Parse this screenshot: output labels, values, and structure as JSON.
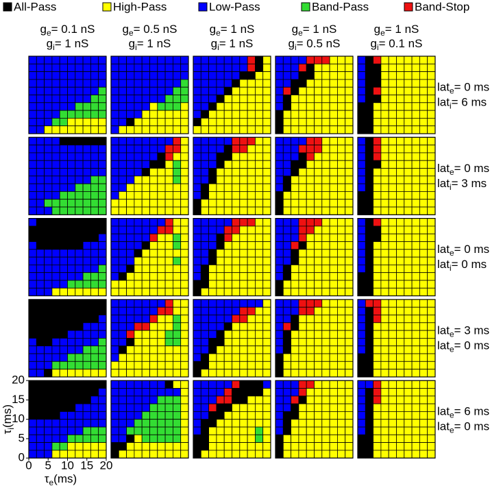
{
  "chart_data": {
    "type": "heatmap",
    "legend": [
      {
        "name": "All-Pass",
        "color": "#000000"
      },
      {
        "name": "High-Pass",
        "color": "#ffff00"
      },
      {
        "name": "Low-Pass",
        "color": "#0000ff"
      },
      {
        "name": "Band-Pass",
        "color": "#33dd33"
      },
      {
        "name": "Band-Stop",
        "color": "#ee1111"
      }
    ],
    "columns": [
      [
        {
          "base": "g",
          "sub": "e",
          "rest": "= 0.1 nS"
        },
        {
          "base": "g",
          "sub": "i",
          "rest": "= 1 nS"
        }
      ],
      [
        {
          "base": "g",
          "sub": "e",
          "rest": "= 0.5 nS"
        },
        {
          "base": "g",
          "sub": "i",
          "rest": "= 1 nS"
        }
      ],
      [
        {
          "base": "g",
          "sub": "e",
          "rest": "= 1 nS"
        },
        {
          "base": "g",
          "sub": "i",
          "rest": "= 1 nS"
        }
      ],
      [
        {
          "base": "g",
          "sub": "e",
          "rest": "= 1 nS"
        },
        {
          "base": "g",
          "sub": "i",
          "rest": "= 0.5 nS"
        }
      ],
      [
        {
          "base": "g",
          "sub": "e",
          "rest": "= 1 nS"
        },
        {
          "base": "g",
          "sub": "i",
          "rest": "= 0.1 nS"
        }
      ]
    ],
    "rows": [
      [
        {
          "base": "lat",
          "sub": "e",
          "rest": "= 0 ms"
        },
        {
          "base": "lat",
          "sub": "i",
          "rest": "= 6 ms"
        }
      ],
      [
        {
          "base": "lat",
          "sub": "e",
          "rest": "= 0 ms"
        },
        {
          "base": "lat",
          "sub": "i",
          "rest": "= 3 ms"
        }
      ],
      [
        {
          "base": "lat",
          "sub": "e",
          "rest": "= 0 ms"
        },
        {
          "base": "lat",
          "sub": "i",
          "rest": "= 0 ms"
        }
      ],
      [
        {
          "base": "lat",
          "sub": "e",
          "rest": "= 3 ms"
        },
        {
          "base": "lat",
          "sub": "e",
          "rest": "= 0 ms"
        }
      ],
      [
        {
          "base": "lat",
          "sub": "e",
          "rest": "= 6 ms"
        },
        {
          "base": "lat",
          "sub": "e",
          "rest": "= 0 ms"
        }
      ]
    ],
    "x_label": {
      "base": "τ",
      "sub": "e",
      "rest": "(ms)"
    },
    "y_label": {
      "base": "τ",
      "sub": "i",
      "rest": "(ms)"
    },
    "xlim": [
      0,
      20
    ],
    "ylim": [
      0,
      20
    ],
    "xticks": [
      0,
      5,
      10,
      15,
      20
    ],
    "yticks": [
      0,
      5,
      10,
      15,
      20
    ],
    "panels": [
      [
        [
          "2222222222",
          "2222222222",
          "2222222222",
          "2222222222",
          "2222222223",
          "2222222233",
          "2222223333",
          "2222333333",
          "2223311111",
          "2211111111"
        ],
        [
          "2222222222",
          "2222222222",
          "2222222222",
          "2222222223",
          "2222222233",
          "2222222333",
          "2222213331",
          "2222111111",
          "2201111111",
          "2111111111"
        ],
        [
          "2222222401",
          "2222222401",
          "2222220011",
          "2222201111",
          "2222011111",
          "2220111111",
          "2201111111",
          "2011111111",
          "0111111111",
          "1111111111"
        ],
        [
          "2222444111",
          "2224011111",
          "2220011111",
          "2200111111",
          "2401111111",
          "2011111111",
          "2011111111",
          "0111111111",
          "0111111111",
          "0111111111"
        ],
        [
          "2041111111",
          "2001111111",
          "2001111111",
          "2001111111",
          "2041111111",
          "2001111111",
          "0011111111",
          "0011111111",
          "0011111111",
          "0011111111"
        ]
      ],
      [
        [
          "2222000000",
          "2222222222",
          "2222222222",
          "2222222222",
          "2222222222",
          "2222222233",
          "2222223333",
          "2222333333",
          "2233333333",
          "2223333333"
        ],
        [
          "2222222241",
          "2222222441",
          "2222220411",
          "2222200131",
          "2222011131",
          "2221111131",
          "2211111111",
          "2111111111",
          "1111111111",
          "1111111111"
        ],
        [
          "2222244411",
          "2222044111",
          "2220011111",
          "2220111111",
          "2201111111",
          "2201111111",
          "2011111111",
          "2011111111",
          "0111111111",
          "0111111111"
        ],
        [
          "2222441111",
          "2224441111",
          "2220411111",
          "2200111111",
          "2201111111",
          "2011111111",
          "2011111111",
          "0111111111",
          "0111111111",
          "0111111111"
        ],
        [
          "2041111111",
          "2041111111",
          "2041111111",
          "2001111111",
          "2011111111",
          "2011111111",
          "2011111111",
          "0011111111",
          "0011111111",
          "0011111111"
        ]
      ],
      [
        [
          "2000000000",
          "0000000000",
          "0000000002",
          "2000000222",
          "2222222222",
          "2222222222",
          "2222222223",
          "2222222333",
          "2222233333",
          "2221111111"
        ],
        [
          "2222222411",
          "2222224411",
          "2222241131",
          "2222011131",
          "2220111111",
          "2221111131",
          "2201111111",
          "2011111111",
          "1111111111",
          "1111111111"
        ],
        [
          "2222244411",
          "2222441111",
          "2220411111",
          "2220111111",
          "2201111111",
          "2201111111",
          "2011111111",
          "2011111111",
          "0011111111",
          "0111111111"
        ],
        [
          "2224441111",
          "2224411111",
          "2224111111",
          "2240111111",
          "2201111111",
          "2201111111",
          "2011111111",
          "2011111111",
          "0111111111",
          "0111111111"
        ],
        [
          "2041111111",
          "2001111111",
          "2001111111",
          "2011111111",
          "2011111111",
          "2011111111",
          "2011111111",
          "0011111111",
          "0011111111",
          "0011111111"
        ]
      ],
      [
        [
          "0000000000",
          "0000000000",
          "0000000002",
          "0000000222",
          "0000022222",
          "2002222223",
          "2222222333",
          "2222233333",
          "2223333333",
          "2201111111"
        ],
        [
          "2222222411",
          "2222224411",
          "2222241131",
          "2224411131",
          "2241111331",
          "2201111331",
          "2011111111",
          "2111111111",
          "1111111111",
          "1111111111"
        ],
        [
          "2222222221",
          "2222224411",
          "2222244111",
          "2222011111",
          "2220111111",
          "2200111111",
          "2201111111",
          "2011111111",
          "0011111111",
          "0111111111"
        ],
        [
          "2224441111",
          "2224411111",
          "2201111111",
          "2401111111",
          "2011111111",
          "2011111111",
          "2011111111",
          "0111111111",
          "0111111111",
          "0111111111"
        ],
        [
          "2441111111",
          "2041111111",
          "2041111111",
          "2011111111",
          "2011111111",
          "2011111111",
          "2011111111",
          "0011111111",
          "0011111111",
          "0011111111"
        ]
      ],
      [
        [
          "0000000000",
          "0000000002",
          "0000000022",
          "0000002222",
          "0000222222",
          "2222222222",
          "2222222333",
          "2222233333",
          "2223311111",
          "2221111111"
        ],
        [
          "2222222011",
          "2222222221",
          "2222223331",
          "2222233331",
          "2222333331",
          "2223333331",
          "2233333331",
          "2201333331",
          "0011111111",
          "0111111111"
        ],
        [
          "2222240002",
          "2222400001",
          "2224400111",
          "2240011111",
          "2200111111",
          "2001111111",
          "2011111131",
          "0011111131",
          "0011111111",
          "0111111111"
        ],
        [
          "2224411111",
          "2224111111",
          "2240111111",
          "2201111111",
          "2001111111",
          "2011111111",
          "2011111111",
          "0111111111",
          "0111111111",
          "0111111111"
        ],
        [
          "2241111111",
          "2041111111",
          "2041111111",
          "2011111111",
          "2011111111",
          "2011111111",
          "2011111111",
          "0011111111",
          "0011111111",
          "0011111111"
        ]
      ]
    ]
  }
}
